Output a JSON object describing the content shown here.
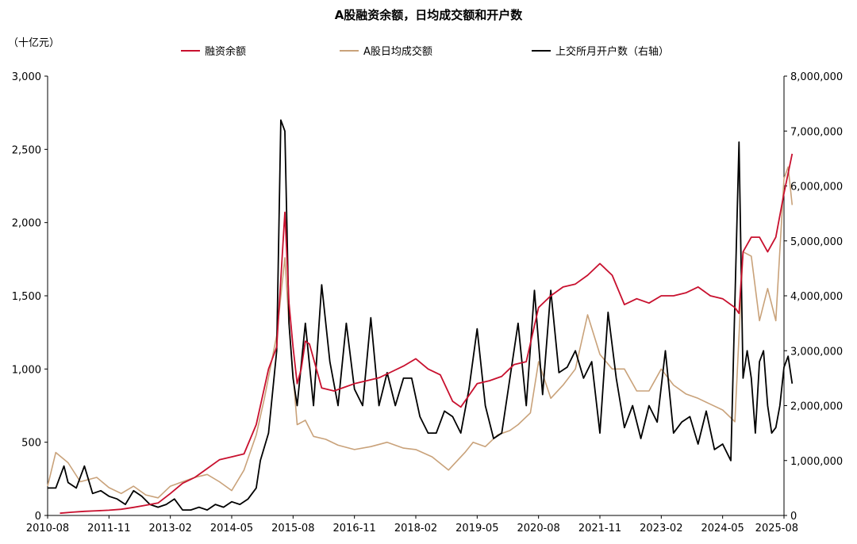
{
  "chart_data": {
    "type": "line",
    "title": "A股融资余额，日均成交额和开户数",
    "left_unit": "（十亿元）",
    "x_tick_labels": [
      "2010-08",
      "2011-11",
      "2013-02",
      "2014-05",
      "2015-08",
      "2016-11",
      "2018-02",
      "2019-05",
      "2020-08",
      "2021-11",
      "2023-02",
      "2024-05",
      "2025-08"
    ],
    "y_left": {
      "ylim": [
        0,
        3000
      ],
      "ticks": [
        "0",
        "500",
        "1,000",
        "1,500",
        "2,000",
        "2,500",
        "3,000"
      ]
    },
    "y_right": {
      "ylim": [
        0,
        8000000
      ],
      "ticks": [
        "0",
        "1,000,000",
        "2,000,000",
        "3,000,000",
        "4,000,000",
        "5,000,000",
        "6,000,000",
        "7,000,000",
        "8,000,000"
      ]
    },
    "legend_position": "top",
    "series": [
      {
        "name": "融资余额",
        "axis": "left",
        "color": "#c8102e",
        "x": [
          "2010-11",
          "2011-02",
          "2011-05",
          "2011-08",
          "2011-11",
          "2012-02",
          "2012-05",
          "2012-08",
          "2012-11",
          "2013-02",
          "2013-05",
          "2013-08",
          "2013-11",
          "2014-02",
          "2014-05",
          "2014-08",
          "2014-11",
          "2015-02",
          "2015-04",
          "2015-06",
          "2015-07",
          "2015-08",
          "2015-09",
          "2015-10",
          "2015-11",
          "2015-12",
          "2016-03",
          "2016-06",
          "2016-09",
          "2016-11",
          "2017-02",
          "2017-05",
          "2017-08",
          "2017-11",
          "2018-02",
          "2018-05",
          "2018-08",
          "2018-11",
          "2019-01",
          "2019-03",
          "2019-05",
          "2019-08",
          "2019-11",
          "2020-02",
          "2020-05",
          "2020-08",
          "2020-11",
          "2021-02",
          "2021-05",
          "2021-08",
          "2021-11",
          "2022-02",
          "2022-05",
          "2022-08",
          "2022-11",
          "2023-02",
          "2023-05",
          "2023-08",
          "2023-11",
          "2024-02",
          "2024-05",
          "2024-08",
          "2024-09",
          "2024-10",
          "2024-12",
          "2025-02",
          "2025-04",
          "2025-06",
          "2025-08",
          "2025-10"
        ],
        "values": [
          15,
          22,
          28,
          32,
          36,
          42,
          55,
          70,
          85,
          150,
          220,
          260,
          320,
          380,
          400,
          420,
          620,
          1000,
          1150,
          2070,
          1450,
          1150,
          900,
          1000,
          1190,
          1170,
          870,
          850,
          880,
          900,
          920,
          940,
          980,
          1020,
          1070,
          1000,
          960,
          780,
          740,
          820,
          900,
          920,
          950,
          1030,
          1050,
          1420,
          1500,
          1560,
          1580,
          1640,
          1720,
          1640,
          1440,
          1480,
          1450,
          1500,
          1500,
          1520,
          1560,
          1500,
          1480,
          1420,
          1380,
          1800,
          1900,
          1900,
          1800,
          1900,
          2200,
          2470
        ]
      },
      {
        "name": "A股日均成交额",
        "axis": "left",
        "color": "#c9a27a",
        "x": [
          "2010-08",
          "2010-10",
          "2011-01",
          "2011-04",
          "2011-08",
          "2011-11",
          "2012-02",
          "2012-05",
          "2012-08",
          "2012-11",
          "2013-02",
          "2013-05",
          "2013-08",
          "2013-11",
          "2014-02",
          "2014-05",
          "2014-08",
          "2014-11",
          "2015-01",
          "2015-04",
          "2015-06",
          "2015-07",
          "2015-09",
          "2015-11",
          "2016-01",
          "2016-04",
          "2016-07",
          "2016-11",
          "2017-03",
          "2017-07",
          "2017-11",
          "2018-02",
          "2018-06",
          "2018-10",
          "2019-02",
          "2019-04",
          "2019-07",
          "2019-10",
          "2020-01",
          "2020-03",
          "2020-06",
          "2020-08",
          "2020-11",
          "2021-02",
          "2021-05",
          "2021-08",
          "2021-11",
          "2022-02",
          "2022-05",
          "2022-08",
          "2022-11",
          "2023-02",
          "2023-05",
          "2023-08",
          "2023-11",
          "2024-02",
          "2024-05",
          "2024-08",
          "2024-10",
          "2024-12",
          "2025-02",
          "2025-04",
          "2025-06",
          "2025-08",
          "2025-09",
          "2025-10"
        ],
        "values": [
          200,
          430,
          360,
          230,
          260,
          190,
          150,
          200,
          140,
          120,
          200,
          230,
          260,
          280,
          230,
          170,
          310,
          550,
          800,
          1230,
          1760,
          1300,
          620,
          650,
          540,
          520,
          480,
          450,
          470,
          500,
          460,
          450,
          400,
          310,
          430,
          500,
          470,
          550,
          580,
          620,
          700,
          1050,
          800,
          890,
          1000,
          1370,
          1100,
          1000,
          1000,
          850,
          850,
          1000,
          890,
          830,
          800,
          760,
          720,
          640,
          1800,
          1770,
          1330,
          1550,
          1330,
          2300,
          2380,
          2120
        ]
      },
      {
        "name": "上交所月开户数（右轴）",
        "axis": "right",
        "color": "#000000",
        "x": [
          "2010-08",
          "2010-10",
          "2010-12",
          "2011-01",
          "2011-03",
          "2011-05",
          "2011-07",
          "2011-09",
          "2011-11",
          "2012-01",
          "2012-03",
          "2012-05",
          "2012-07",
          "2012-09",
          "2012-11",
          "2013-01",
          "2013-03",
          "2013-05",
          "2013-07",
          "2013-09",
          "2013-11",
          "2014-01",
          "2014-03",
          "2014-05",
          "2014-07",
          "2014-09",
          "2014-11",
          "2014-12",
          "2015-02",
          "2015-04",
          "2015-05",
          "2015-06",
          "2015-07",
          "2015-08",
          "2015-09",
          "2015-11",
          "2016-01",
          "2016-03",
          "2016-05",
          "2016-07",
          "2016-09",
          "2016-11",
          "2017-01",
          "2017-03",
          "2017-05",
          "2017-07",
          "2017-09",
          "2017-11",
          "2018-01",
          "2018-03",
          "2018-05",
          "2018-07",
          "2018-09",
          "2018-11",
          "2019-01",
          "2019-03",
          "2019-05",
          "2019-07",
          "2019-09",
          "2019-11",
          "2020-01",
          "2020-03",
          "2020-05",
          "2020-07",
          "2020-09",
          "2020-11",
          "2021-01",
          "2021-03",
          "2021-05",
          "2021-07",
          "2021-09",
          "2021-11",
          "2022-01",
          "2022-03",
          "2022-05",
          "2022-07",
          "2022-09",
          "2022-11",
          "2023-01",
          "2023-03",
          "2023-05",
          "2023-07",
          "2023-09",
          "2023-11",
          "2024-01",
          "2024-03",
          "2024-05",
          "2024-07",
          "2024-09",
          "2024-10",
          "2024-11",
          "2024-12",
          "2025-01",
          "2025-02",
          "2025-03",
          "2025-04",
          "2025-05",
          "2025-06",
          "2025-07",
          "2025-08",
          "2025-09",
          "2025-10"
        ],
        "values": [
          500000,
          500000,
          900000,
          600000,
          500000,
          900000,
          400000,
          450000,
          350000,
          300000,
          200000,
          450000,
          350000,
          200000,
          150000,
          200000,
          300000,
          100000,
          100000,
          150000,
          100000,
          200000,
          150000,
          250000,
          200000,
          300000,
          500000,
          1000000,
          1500000,
          3000000,
          7200000,
          7000000,
          3500000,
          2500000,
          2000000,
          3500000,
          2000000,
          4200000,
          2800000,
          2000000,
          3500000,
          2300000,
          2000000,
          3600000,
          2000000,
          2600000,
          2000000,
          2500000,
          2500000,
          1800000,
          1500000,
          1500000,
          1900000,
          1800000,
          1500000,
          2300000,
          3400000,
          2000000,
          1400000,
          1500000,
          2500000,
          3500000,
          2000000,
          4100000,
          2200000,
          4100000,
          2600000,
          2700000,
          3000000,
          2500000,
          2800000,
          1500000,
          3700000,
          2500000,
          1600000,
          2000000,
          1400000,
          2000000,
          1700000,
          3000000,
          1500000,
          1700000,
          1800000,
          1300000,
          1900000,
          1200000,
          1300000,
          1000000,
          6800000,
          2500000,
          3000000,
          2500000,
          1500000,
          2800000,
          3000000,
          2000000,
          1500000,
          1600000,
          2000000,
          2700000,
          2900000,
          2400000
        ]
      }
    ]
  }
}
